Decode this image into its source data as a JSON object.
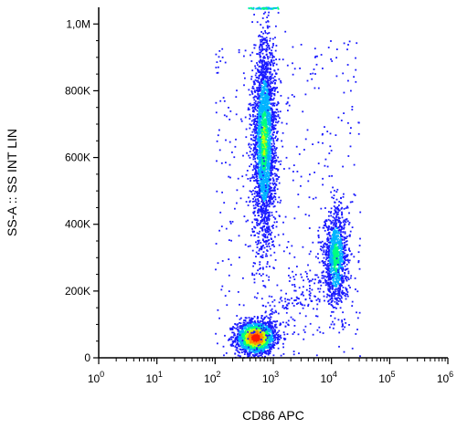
{
  "chart_data": {
    "type": "scatter",
    "xlabel": "CD86 APC",
    "ylabel": "SS-A :: SS INT LIN",
    "x_scale": "log",
    "xlim": [
      1,
      1000000
    ],
    "ylim": [
      0,
      1050000
    ],
    "x_ticks": [
      {
        "value": 1,
        "base": "10",
        "exp": "0"
      },
      {
        "value": 10,
        "base": "10",
        "exp": "1"
      },
      {
        "value": 100,
        "base": "10",
        "exp": "2"
      },
      {
        "value": 1000,
        "base": "10",
        "exp": "3"
      },
      {
        "value": 10000,
        "base": "10",
        "exp": "4"
      },
      {
        "value": 100000,
        "base": "10",
        "exp": "5"
      },
      {
        "value": 1000000,
        "base": "10",
        "exp": "6"
      }
    ],
    "y_ticks": [
      {
        "value": 0,
        "label": "0"
      },
      {
        "value": 200000,
        "label": "200K"
      },
      {
        "value": 400000,
        "label": "400K"
      },
      {
        "value": 600000,
        "label": "600K"
      },
      {
        "value": 800000,
        "label": "800K"
      },
      {
        "value": 1000000,
        "label": "1,0M"
      }
    ],
    "grid": false,
    "legend": "none",
    "density_colormap": [
      "#1a1aff",
      "#00b4ff",
      "#00ff80",
      "#c8ff00",
      "#ff8c00",
      "#ff1a00"
    ],
    "clusters": [
      {
        "center": {
          "x": 500,
          "y": 60000
        },
        "spread_log10_x": 0.17,
        "spread_y": 25000,
        "relative_density": "highest"
      },
      {
        "center": {
          "x": 700,
          "y": 650000
        },
        "spread_log10_x": 0.1,
        "spread_y": 150000,
        "relative_density": "high"
      },
      {
        "center": {
          "x": 12000,
          "y": 300000
        },
        "spread_log10_x": 0.1,
        "spread_y": 75000,
        "relative_density": "medium"
      }
    ]
  }
}
